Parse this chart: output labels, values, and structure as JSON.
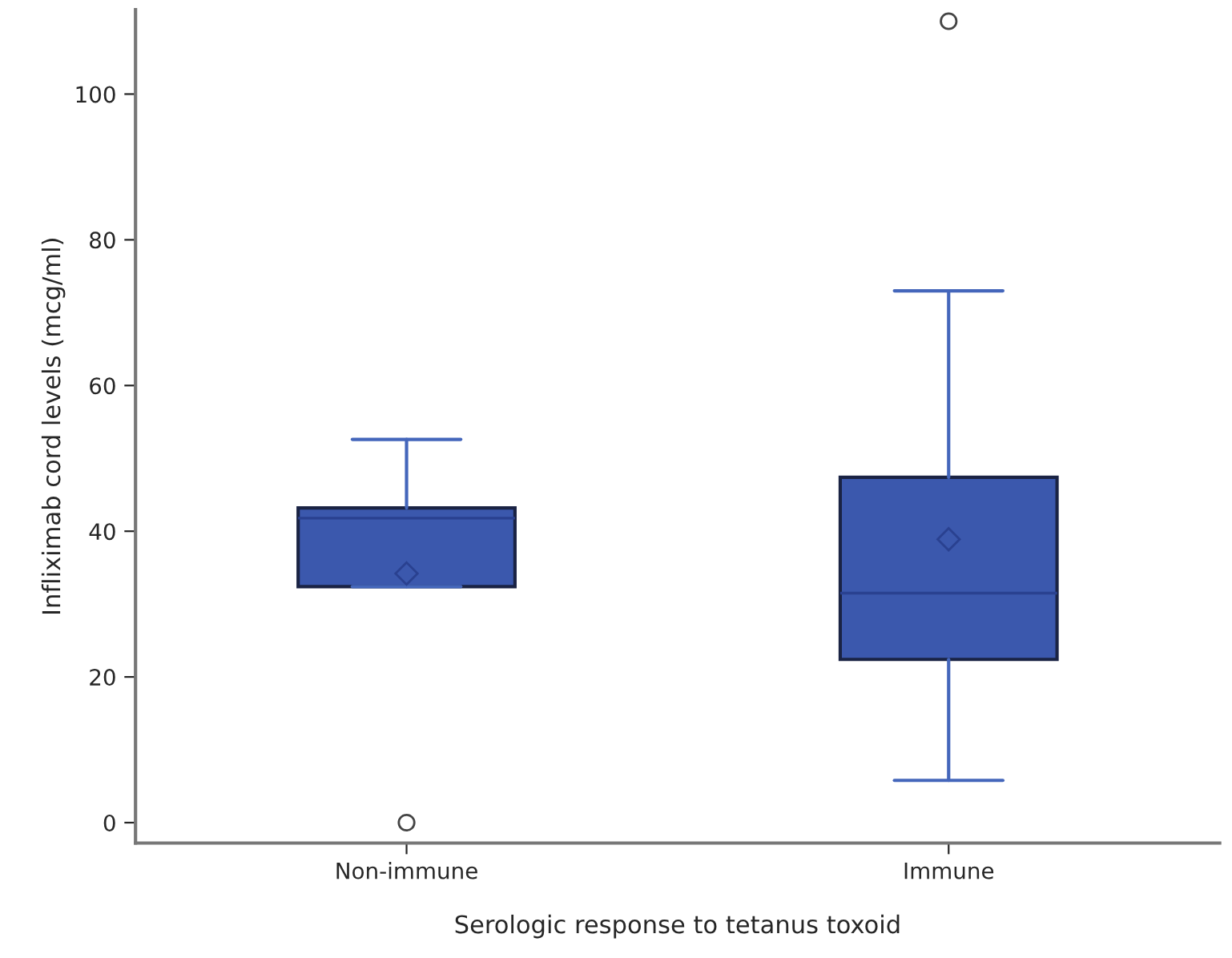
{
  "chart_data": {
    "type": "box",
    "xlabel": "Serologic response to tetanus toxoid",
    "ylabel": "Infliximab cord levels (mcg/ml)",
    "categories": [
      "Non-immune",
      "Immune"
    ],
    "boxes": [
      {
        "low": 32.4,
        "q1": 32.4,
        "median": 41.8,
        "q3": 43.2,
        "high": 52.6,
        "mean": 34.2,
        "outliers": [
          0
        ]
      },
      {
        "low": 5.8,
        "q1": 22.4,
        "median": 31.5,
        "q3": 47.4,
        "high": 73,
        "mean": 38.9,
        "outliers": [
          110
        ]
      }
    ],
    "color": "#3b58ad",
    "ylim": [
      -2.8,
      111.6
    ],
    "yticks": [
      0,
      20,
      40,
      60,
      80,
      100
    ],
    "grid": false,
    "legend": false
  }
}
